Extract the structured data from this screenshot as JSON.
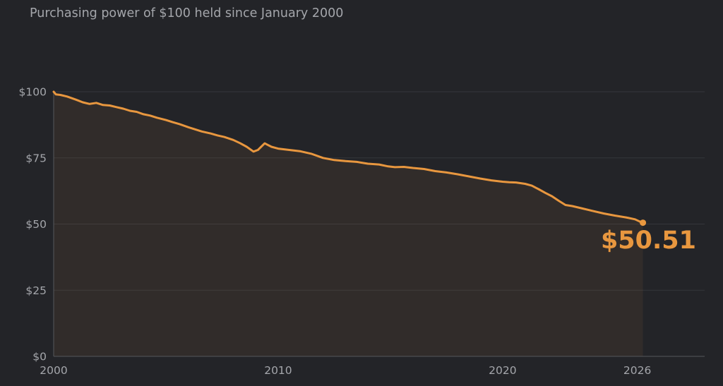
{
  "chart_data": {
    "type": "area",
    "title": "Purchasing power of $100 held since January 2000",
    "xlabel": "",
    "ylabel": "",
    "xlim": [
      2000,
      2029
    ],
    "ylim": [
      0,
      100
    ],
    "x_ticks": [
      {
        "value": 2000,
        "label": "2000"
      },
      {
        "value": 2010,
        "label": "2010"
      },
      {
        "value": 2020,
        "label": "2020"
      },
      {
        "value": 2026,
        "label": "2026"
      }
    ],
    "y_ticks": [
      {
        "value": 0,
        "label": "$0"
      },
      {
        "value": 25,
        "label": "$25"
      },
      {
        "value": 50,
        "label": "$50"
      },
      {
        "value": 75,
        "label": "$75"
      },
      {
        "value": 100,
        "label": "$100"
      }
    ],
    "grid": true,
    "legend": "none",
    "series": [
      {
        "color": "#e8973f",
        "x": [
          2000.0,
          2000.1,
          2000.3,
          2000.6,
          2001.0,
          2001.3,
          2001.6,
          2001.9,
          2002.2,
          2002.5,
          2002.8,
          2003.1,
          2003.4,
          2003.7,
          2004.0,
          2004.3,
          2004.6,
          2005.0,
          2005.3,
          2005.6,
          2006.0,
          2006.3,
          2006.6,
          2007.0,
          2007.3,
          2007.6,
          2008.0,
          2008.3,
          2008.6,
          2008.9,
          2009.1,
          2009.4,
          2009.7,
          2010.0,
          2010.5,
          2011.0,
          2011.5,
          2012.0,
          2012.5,
          2013.0,
          2013.5,
          2014.0,
          2014.5,
          2014.9,
          2015.2,
          2015.6,
          2016.0,
          2016.5,
          2017.0,
          2017.5,
          2018.0,
          2018.5,
          2019.0,
          2019.5,
          2020.0,
          2020.3,
          2020.6,
          2021.0,
          2021.3,
          2021.6,
          2021.9,
          2022.2,
          2022.5,
          2022.8,
          2023.1,
          2023.5,
          2024.0,
          2024.5,
          2025.0,
          2025.5,
          2025.9,
          2026.1,
          2026.25
        ],
        "values": [
          100.0,
          99.0,
          98.8,
          98.2,
          97.0,
          96.0,
          95.4,
          95.8,
          95.0,
          94.8,
          94.2,
          93.6,
          92.8,
          92.4,
          91.5,
          91.0,
          90.2,
          89.3,
          88.5,
          87.8,
          86.6,
          85.8,
          85.0,
          84.2,
          83.5,
          82.9,
          81.8,
          80.6,
          79.2,
          77.4,
          78.0,
          80.5,
          79.2,
          78.5,
          78.0,
          77.5,
          76.5,
          75.0,
          74.2,
          73.8,
          73.5,
          72.8,
          72.5,
          71.8,
          71.5,
          71.6,
          71.2,
          70.8,
          70.0,
          69.5,
          68.8,
          68.0,
          67.2,
          66.5,
          66.0,
          65.8,
          65.7,
          65.2,
          64.5,
          63.2,
          61.8,
          60.5,
          58.8,
          57.2,
          56.8,
          56.0,
          55.0,
          54.0,
          53.2,
          52.5,
          51.8,
          51.0,
          50.51
        ]
      }
    ],
    "end_label": "$50.51"
  }
}
